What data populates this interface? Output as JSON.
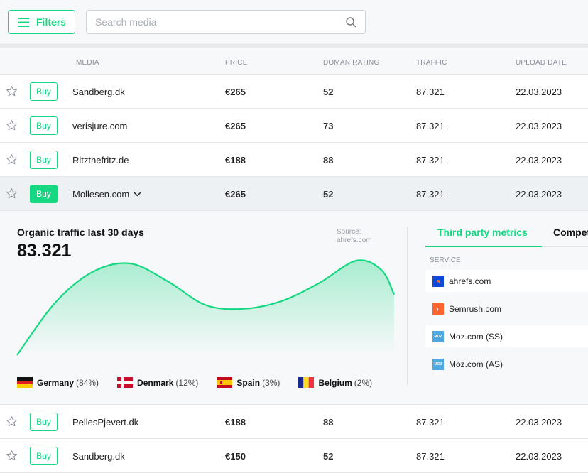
{
  "toolbar": {
    "filters_label": "Filters",
    "search_placeholder": "Search media"
  },
  "table": {
    "headers": {
      "media": "MEDIA",
      "price": "PRICE",
      "rating": "DOMAN RATING",
      "traffic": "TRAFFIC",
      "date": "UPLOAD DATE"
    },
    "buy_label": "Buy",
    "rows": [
      {
        "media": "Sandberg.dk",
        "price": "€265",
        "rating": "52",
        "traffic": "87.321",
        "date": "22.03.2023"
      },
      {
        "media": "verisjure.com",
        "price": "€265",
        "rating": "73",
        "traffic": "87.321",
        "date": "22.03.2023"
      },
      {
        "media": "Ritzthefritz.de",
        "price": "€188",
        "rating": "88",
        "traffic": "87.321",
        "date": "22.03.2023"
      },
      {
        "media": "Mollesen.com",
        "price": "€265",
        "rating": "52",
        "traffic": "87.321",
        "date": "22.03.2023"
      },
      {
        "media": "PellesPjevert.dk",
        "price": "€188",
        "rating": "88",
        "traffic": "87.321",
        "date": "22.03.2023"
      },
      {
        "media": "Sandberg.dk",
        "price": "€150",
        "rating": "52",
        "traffic": "87.321",
        "date": "22.03.2023"
      }
    ]
  },
  "details": {
    "title": "Organic traffic last 30 days",
    "value": "83.321",
    "source_label": "Source:",
    "source": "ahrefs.com",
    "countries": [
      {
        "name": "Germany",
        "pct": "(84%)"
      },
      {
        "name": "Denmark",
        "pct": "(12%)"
      },
      {
        "name": "Spain",
        "pct": "(3%)"
      },
      {
        "name": "Belgium",
        "pct": "(2%)"
      }
    ],
    "tabs": [
      "Third party metrics",
      "Competitors"
    ],
    "service_header": "SERVICE",
    "services": [
      "ahrefs.com",
      "Semrush.com",
      "Moz.com (SS)",
      "Moz.com (AS)"
    ]
  },
  "chart_data": {
    "type": "area",
    "x": [
      0,
      3,
      6,
      9,
      12,
      15,
      18,
      21,
      24,
      27,
      29,
      30
    ],
    "values": [
      0,
      55,
      88,
      97,
      78,
      53,
      49,
      57,
      76,
      100,
      90,
      64
    ],
    "ylim": [
      0,
      100
    ],
    "color": "#17d882"
  },
  "colors": {
    "accent": "#17d882"
  }
}
